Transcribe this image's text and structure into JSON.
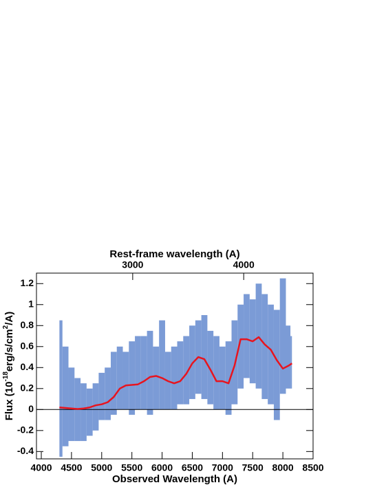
{
  "chart_data": {
    "type": "spectrum",
    "title": "Rest-frame wavelength (A)",
    "xlabel": "Observed Wavelength (A)",
    "ylabel_parts": [
      "Flux (10",
      "-18",
      "erg/s/cm",
      "2",
      "/A)"
    ],
    "x": [
      4300,
      4400,
      4500,
      4600,
      4700,
      4800,
      4900,
      5000,
      5100,
      5200,
      5300,
      5400,
      5500,
      5600,
      5700,
      5800,
      5900,
      6000,
      6100,
      6200,
      6300,
      6400,
      6500,
      6600,
      6700,
      6800,
      6900,
      7000,
      7100,
      7200,
      7300,
      7400,
      7500,
      7600,
      7700,
      7800,
      7900,
      8000,
      8100,
      8150
    ],
    "values": [
      0.02,
      0.015,
      0.01,
      0.005,
      0.01,
      0.02,
      0.04,
      0.05,
      0.07,
      0.12,
      0.2,
      0.23,
      0.235,
      0.24,
      0.27,
      0.31,
      0.32,
      0.3,
      0.27,
      0.25,
      0.27,
      0.34,
      0.44,
      0.5,
      0.48,
      0.38,
      0.27,
      0.27,
      0.25,
      0.42,
      0.67,
      0.67,
      0.65,
      0.69,
      0.62,
      0.57,
      0.47,
      0.39,
      0.42,
      0.44
    ],
    "band_high": [
      0.85,
      0.6,
      0.4,
      0.3,
      0.25,
      0.2,
      0.25,
      0.35,
      0.4,
      0.55,
      0.6,
      0.55,
      0.65,
      0.7,
      0.7,
      0.75,
      0.6,
      0.85,
      0.55,
      0.6,
      0.65,
      0.7,
      0.8,
      0.85,
      0.9,
      0.75,
      0.7,
      0.6,
      0.65,
      0.85,
      1.0,
      1.1,
      1.05,
      1.2,
      1.1,
      1.0,
      0.95,
      1.25,
      0.8,
      0.7
    ],
    "band_low": [
      -0.45,
      -0.35,
      -0.3,
      -0.3,
      -0.3,
      -0.25,
      -0.2,
      -0.1,
      -0.1,
      -0.05,
      0,
      0,
      -0.05,
      0,
      0,
      -0.05,
      0,
      0,
      0,
      0,
      0.05,
      0.05,
      0.1,
      0.15,
      0.1,
      0.05,
      0,
      0,
      -0.05,
      0.05,
      0.2,
      0.3,
      0.25,
      0.2,
      0.1,
      0.05,
      -0.1,
      0.15,
      0.2,
      0.2
    ],
    "color": "#e8141e",
    "band_color": "#7b9bd6",
    "xlim": [
      3920,
      8500
    ],
    "xticks": [
      4000,
      4500,
      5000,
      5500,
      6000,
      6500,
      7000,
      7500,
      8000,
      8500
    ],
    "x2lim": [
      2133,
      4625
    ],
    "x2ticks": [
      3000,
      4000
    ],
    "ylim": [
      -0.47,
      1.3
    ],
    "yticks": [
      -0.4,
      -0.2,
      0,
      0.2,
      0.4,
      0.6,
      0.8,
      1,
      1.2
    ]
  }
}
